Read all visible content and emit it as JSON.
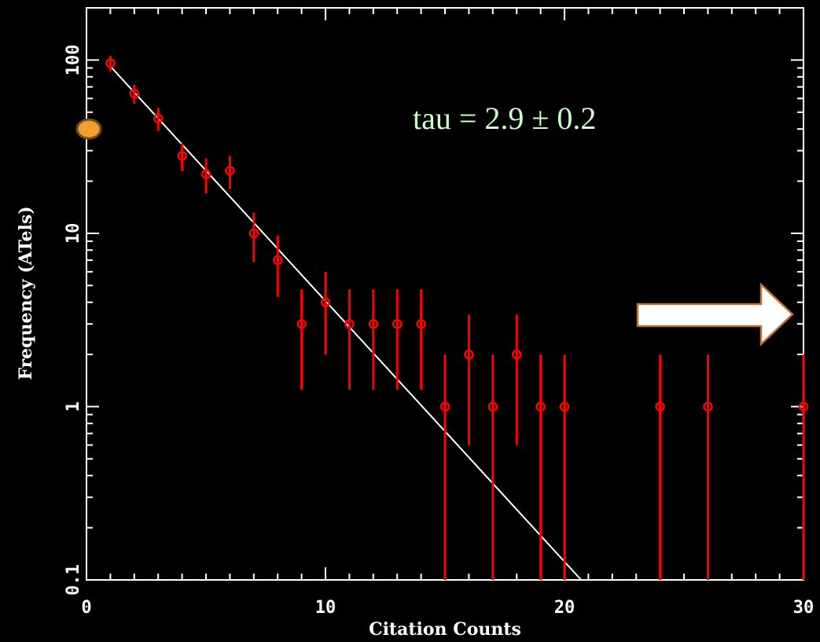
{
  "chart_data": {
    "type": "scatter",
    "xlabel": "Citation Counts",
    "ylabel": "Frequency (ATels)",
    "xlim": [
      0,
      30
    ],
    "ylim": [
      0.1,
      200
    ],
    "y_scale": "log",
    "x_ticks": [
      0,
      10,
      20,
      30
    ],
    "x_tick_labels": [
      "0",
      "10",
      "20",
      "30"
    ],
    "y_ticks": [
      0.1,
      1,
      10,
      100
    ],
    "y_tick_labels": [
      "0.1",
      "1",
      "10",
      "100"
    ],
    "grid": false,
    "annotation": "tau = 2.9 ± 0.2",
    "colors": {
      "background": "#000000",
      "axes": "#ffffff",
      "points": "#ff0000",
      "fit": "#ffffff",
      "annotation": "#ccffcc",
      "marker_fill": "#f0a030",
      "marker_edge": "#7a4a10",
      "arrow_fill": "#ffffff",
      "arrow_edge": "#c07030"
    },
    "series": [
      {
        "points": [
          {
            "x": 1,
            "y": 96,
            "lo": 86,
            "hi": 106
          },
          {
            "x": 2,
            "y": 64,
            "lo": 56,
            "hi": 72
          },
          {
            "x": 3,
            "y": 46,
            "lo": 39,
            "hi": 53
          },
          {
            "x": 4,
            "y": 28,
            "lo": 23,
            "hi": 33
          },
          {
            "x": 5,
            "y": 22,
            "lo": 17,
            "hi": 27
          },
          {
            "x": 6,
            "y": 23,
            "lo": 18,
            "hi": 28
          },
          {
            "x": 7,
            "y": 10,
            "lo": 6.8,
            "hi": 13.2
          },
          {
            "x": 8,
            "y": 7,
            "lo": 4.3,
            "hi": 9.7
          },
          {
            "x": 9,
            "y": 3,
            "lo": 1.25,
            "hi": 4.75
          },
          {
            "x": 10,
            "y": 4,
            "lo": 2,
            "hi": 6
          },
          {
            "x": 11,
            "y": 3,
            "lo": 1.25,
            "hi": 4.75
          },
          {
            "x": 12,
            "y": 3,
            "lo": 1.25,
            "hi": 4.75
          },
          {
            "x": 13,
            "y": 3,
            "lo": 1.25,
            "hi": 4.75
          },
          {
            "x": 14,
            "y": 3,
            "lo": 1.25,
            "hi": 4.75
          },
          {
            "x": 15,
            "y": 1,
            "lo": 0.1,
            "hi": 2
          },
          {
            "x": 16,
            "y": 2,
            "lo": 0.6,
            "hi": 3.4
          },
          {
            "x": 17,
            "y": 1,
            "lo": 0.1,
            "hi": 2
          },
          {
            "x": 18,
            "y": 2,
            "lo": 0.6,
            "hi": 3.4
          },
          {
            "x": 19,
            "y": 1,
            "lo": 0.1,
            "hi": 2
          },
          {
            "x": 20,
            "y": 1,
            "lo": 0.1,
            "hi": 2
          },
          {
            "x": 24,
            "y": 1,
            "lo": 0.1,
            "hi": 2
          },
          {
            "x": 26,
            "y": 1,
            "lo": 0.1,
            "hi": 2
          },
          {
            "x": 30,
            "y": 1,
            "lo": 0.1,
            "hi": 2
          }
        ]
      }
    ],
    "fit_line": {
      "x": [
        1,
        20.7
      ],
      "y": [
        92,
        0.1
      ]
    },
    "marker_at_y": 40,
    "arrow_direction": "right"
  }
}
